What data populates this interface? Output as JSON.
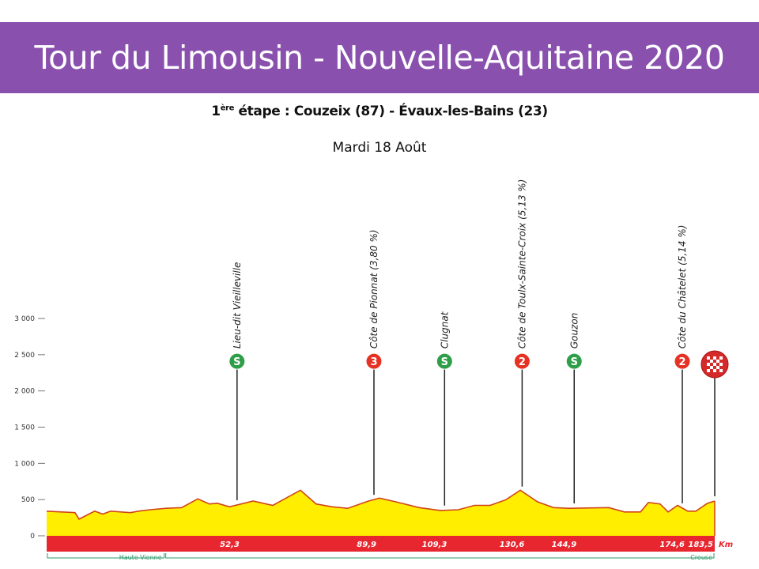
{
  "header": {
    "title": "Tour du Limousin - Nouvelle-Aquitaine 2020",
    "stage_number": "1",
    "stage_sup": "ère",
    "stage_rest": " étape : Couzeix (87) - Évaux-les-Bains (23)",
    "date": "Mardi 18 Août",
    "color": "#8950ae"
  },
  "chart_data": {
    "type": "area",
    "title": "1ère étape : Couzeix (87) - Évaux-les-Bains (23)",
    "xlabel": "Km",
    "ylabel": "",
    "xlim": [
      0,
      183.5
    ],
    "ylim": [
      0,
      3000
    ],
    "yticks": [
      0,
      500,
      1000,
      1500,
      2000,
      2500,
      3000
    ],
    "ytick_labels": [
      "0",
      "500",
      "1 000",
      "1 500",
      "2 000",
      "2 500",
      "3 000"
    ],
    "profile": {
      "km": [
        0,
        7.8,
        8.9,
        13.2,
        15.4,
        17.6,
        23.0,
        25.2,
        28.4,
        32.8,
        37.1,
        41.5,
        44.7,
        46.9,
        50.2,
        56.7,
        62.1,
        69.7,
        74.0,
        78.4,
        82.7,
        88.4,
        91.4,
        95.8,
        102.3,
        108.1,
        113.1,
        117.5,
        121.8,
        126.2,
        130.1,
        134.8,
        139.2,
        143.5,
        154.4,
        158.7,
        163.1,
        165.3,
        168.5,
        170.7,
        173.3,
        176.1,
        178.3,
        181.5,
        183.5
      ],
      "elevation": [
        340,
        320,
        230,
        340,
        300,
        340,
        320,
        340,
        360,
        380,
        390,
        510,
        440,
        450,
        400,
        480,
        420,
        630,
        440,
        400,
        380,
        480,
        520,
        470,
        390,
        350,
        360,
        420,
        420,
        500,
        630,
        470,
        390,
        380,
        390,
        330,
        330,
        460,
        440,
        330,
        420,
        340,
        340,
        450,
        480
      ]
    },
    "markers": [
      {
        "km": 52.3,
        "km_label": "52,3",
        "name": "Lieu-dit Vieilleville",
        "type": "sprint",
        "badge": "S",
        "color": "#2e9e48"
      },
      {
        "km": 89.9,
        "km_label": "89,9",
        "name": "Côte de Pionnat (3,80 %)",
        "type": "climb",
        "badge": "3",
        "color": "#e53225"
      },
      {
        "km": 109.3,
        "km_label": "109,3",
        "name": "Clugnat",
        "type": "sprint",
        "badge": "S",
        "color": "#2e9e48"
      },
      {
        "km": 130.6,
        "km_label": "130,6",
        "name": "Côte de Toulx-Sainte-Croix (5,13 %)",
        "type": "climb",
        "badge": "2",
        "color": "#e53225"
      },
      {
        "km": 144.9,
        "km_label": "144,9",
        "name": "Gouzon",
        "type": "sprint",
        "badge": "S",
        "color": "#2e9e48"
      },
      {
        "km": 174.6,
        "km_label": "174,6",
        "name": "Côte du Châtelet (5,14 %)",
        "type": "climb",
        "badge": "2",
        "color": "#e53225"
      },
      {
        "km": 183.5,
        "km_label": "183,5",
        "name": "",
        "type": "finish",
        "badge": "",
        "color": "#d42a2a"
      }
    ],
    "unit_label": "Km",
    "departments": [
      {
        "name": "Haute-Vienne",
        "from_km": 0,
        "to_km": 32.5
      },
      {
        "name": "Creuse",
        "from_km": 32.5,
        "to_km": 183.5
      }
    ],
    "colors": {
      "fill": "#ffee00",
      "outline": "#d0451b",
      "band": "#e8262f",
      "dept": "#2a9a6a"
    }
  }
}
